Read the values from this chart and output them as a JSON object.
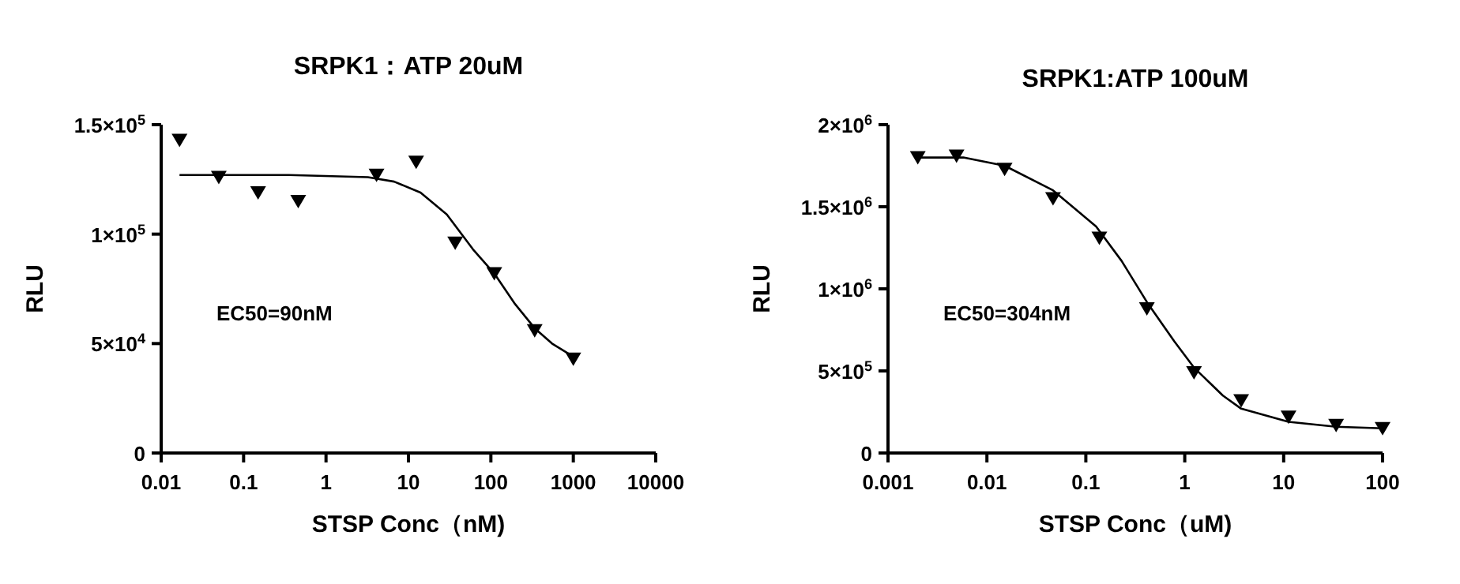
{
  "chart_data": [
    {
      "type": "scatter",
      "title": "SRPK1：ATP 20uM",
      "xlabel": "STSP Conc（nM)",
      "ylabel": "RLU",
      "log": "x",
      "marker": "triangle",
      "grid": false,
      "xlim": [
        0.01,
        10000
      ],
      "xticks": [
        0.01,
        0.1,
        1,
        10,
        100,
        1000,
        10000
      ],
      "ylim": [
        0,
        150000
      ],
      "yticks": [
        {
          "value": 0,
          "label": "0"
        },
        {
          "value": 50000,
          "label": "5×10$^{4}$"
        },
        {
          "value": 100000,
          "label": "1×10$^{5}$"
        },
        {
          "value": 150000,
          "label": "1.5×10$^{5}$"
        }
      ],
      "annotations": [
        "EC50=90nM"
      ],
      "series": [
        {
          "type": "scatter",
          "color": "#000000",
          "x": [
            0.0167,
            0.05,
            0.15,
            0.46,
            4.1,
            12.4,
            36.9,
            110,
            340,
            1000
          ],
          "values": [
            143000,
            126000,
            119000,
            115000,
            127000,
            133000,
            96000,
            82000,
            56000,
            43000
          ]
        },
        {
          "type": "line",
          "color": "#000000",
          "marker": "none",
          "x": [
            0.0167,
            0.355,
            3.22,
            6.7,
            14.0,
            29.2,
            60.8,
            110,
            197,
            340,
            552,
            1000
          ],
          "values": [
            127000,
            127000,
            126000,
            124000,
            119000,
            109000,
            93000,
            82000,
            68000,
            57000,
            50000,
            44000
          ]
        }
      ]
    },
    {
      "type": "scatter",
      "title": "SRPK1:ATP 100uM",
      "xlabel": "STSP Conc（uM)",
      "ylabel": "RLU",
      "log": "x",
      "marker": "triangle",
      "grid": false,
      "xlim": [
        0.001,
        100
      ],
      "xticks": [
        0.001,
        0.01,
        0.1,
        1,
        10,
        100
      ],
      "ylim": [
        0,
        2000000
      ],
      "yticks": [
        {
          "value": 0,
          "label": "0"
        },
        {
          "value": 500000,
          "label": "5×10$^{5}$"
        },
        {
          "value": 1000000,
          "label": "1×10$^{6}$"
        },
        {
          "value": 1500000,
          "label": "1.5×10$^{6}$"
        },
        {
          "value": 2000000,
          "label": "2×10$^{6}$"
        }
      ],
      "annotations": [
        "EC50=304nM"
      ],
      "series": [
        {
          "type": "scatter",
          "color": "#000000",
          "x": [
            0.002,
            0.00493,
            0.0151,
            0.0466,
            0.137,
            0.414,
            1.24,
            3.72,
            11.2,
            33.9,
            100
          ],
          "values": [
            1800000,
            1810000,
            1730000,
            1550000,
            1310000,
            880000,
            490000,
            320000,
            220000,
            170000,
            150000
          ]
        },
        {
          "type": "line",
          "color": "#000000",
          "marker": "none",
          "x": [
            0.002,
            0.00578,
            0.0151,
            0.0466,
            0.127,
            0.23,
            0.414,
            0.784,
            1.24,
            2.43,
            3.72,
            11.2,
            33.9,
            100
          ],
          "values": [
            1800000,
            1800000,
            1750000,
            1600000,
            1380000,
            1170000,
            920000,
            680000,
            520000,
            350000,
            270000,
            190000,
            160000,
            150000
          ]
        }
      ]
    }
  ]
}
